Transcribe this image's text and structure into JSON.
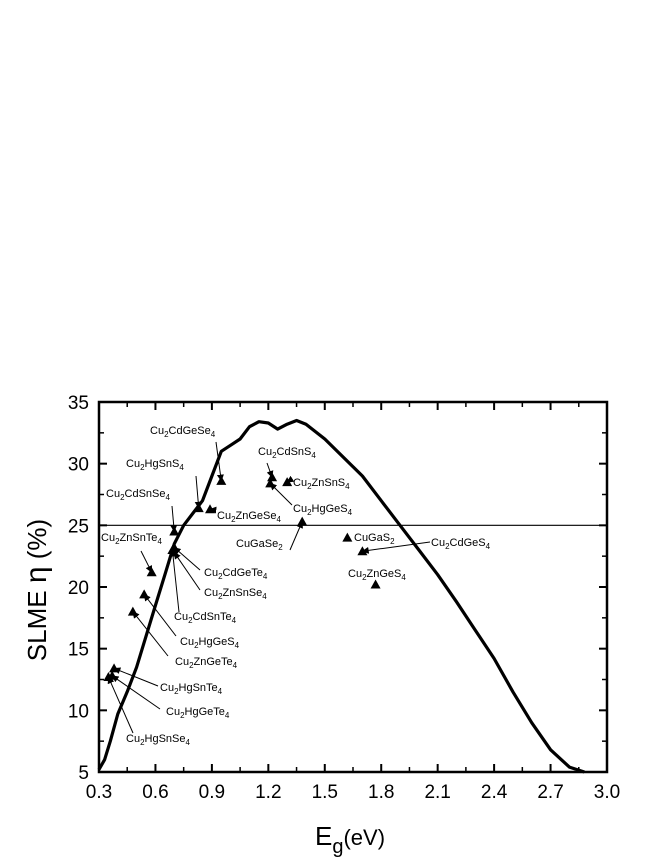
{
  "chart_data": {
    "type": "scatter",
    "xlabel": {
      "main": "E",
      "sub": "g",
      "rest": "(eV)"
    },
    "ylabel": {
      "main": "SLME ",
      "greek": "η",
      "rest": " (%)"
    },
    "xlim": [
      0.3,
      3.0
    ],
    "ylim": [
      5,
      35
    ],
    "xticks": [
      0.3,
      0.6,
      0.9,
      1.2,
      1.5,
      1.8,
      2.1,
      2.4,
      2.7,
      3.0
    ],
    "xtick_labels": [
      "0.3",
      "0.6",
      "0.9",
      "1.2",
      "1.5",
      "1.8",
      "2.1",
      "2.4",
      "2.7",
      "3.0"
    ],
    "yticks": [
      5,
      10,
      15,
      20,
      25,
      30,
      35
    ],
    "ytick_labels": [
      "5",
      "10",
      "15",
      "20",
      "25",
      "30",
      "35"
    ],
    "reference_line_y": 25,
    "slme_curve": {
      "x": [
        0.3,
        0.33,
        0.36,
        0.4,
        0.45,
        0.5,
        0.55,
        0.6,
        0.65,
        0.7,
        0.75,
        0.8,
        0.85,
        0.9,
        0.95,
        1.0,
        1.05,
        1.1,
        1.15,
        1.2,
        1.25,
        1.3,
        1.35,
        1.4,
        1.45,
        1.5,
        1.6,
        1.7,
        1.8,
        1.9,
        2.0,
        2.1,
        2.2,
        2.3,
        2.4,
        2.5,
        2.6,
        2.7,
        2.8,
        2.88
      ],
      "y": [
        5.2,
        6.0,
        7.5,
        9.7,
        11.5,
        13.5,
        16.0,
        18.5,
        21.0,
        23.5,
        25.0,
        26.0,
        27.0,
        29.0,
        31.0,
        31.5,
        32.0,
        33.0,
        33.4,
        33.3,
        32.8,
        33.2,
        33.5,
        33.2,
        32.6,
        32.0,
        30.5,
        29.0,
        27.0,
        25.0,
        23.0,
        21.0,
        18.8,
        16.5,
        14.2,
        11.5,
        9.0,
        6.8,
        5.4,
        4.9
      ]
    },
    "materials": [
      {
        "name": "Cu",
        "sub": "2",
        "tail": "CdGeSe",
        "sub2": "4",
        "x": 0.95,
        "y": 28.6
      },
      {
        "name": "Cu",
        "sub": "2",
        "tail": "HgSnS",
        "sub2": "4",
        "x": 0.83,
        "y": 26.4
      },
      {
        "name": "Cu",
        "sub": "2",
        "tail": "CdSnSe",
        "sub2": "4",
        "x": 0.7,
        "y": 24.5
      },
      {
        "name": "Cu",
        "sub": "2",
        "tail": "ZnSnTe",
        "sub2": "4",
        "x": 0.58,
        "y": 21.2
      },
      {
        "name": "Cu",
        "sub": "2",
        "tail": "ZnGeSe",
        "sub2": "4",
        "x": 0.89,
        "y": 26.3
      },
      {
        "name": "Cu",
        "sub": "2",
        "tail": "CdGeTe",
        "sub2": "4",
        "x": 0.7,
        "y": 23.2
      },
      {
        "name": "Cu",
        "sub": "2",
        "tail": "ZnSnSe",
        "sub2": "4",
        "x": 0.7,
        "y": 22.8
      },
      {
        "name": "Cu",
        "sub": "2",
        "tail": "CdSnTe",
        "sub2": "4",
        "x": 0.69,
        "y": 23.0
      },
      {
        "name": "Cu",
        "sub": "2",
        "tail": "HgGeS",
        "sub2": "4",
        "x": 0.54,
        "y": 19.4
      },
      {
        "name": "Cu",
        "sub": "2",
        "tail": "ZnGeTe",
        "sub2": "4",
        "x": 0.48,
        "y": 18.0
      },
      {
        "name": "Cu",
        "sub": "2",
        "tail": "HgSnTe",
        "sub2": "4",
        "x": 0.38,
        "y": 13.4
      },
      {
        "name": "Cu",
        "sub": "2",
        "tail": "HgGeTe",
        "sub2": "4",
        "x": 0.37,
        "y": 12.8
      },
      {
        "name": "Cu",
        "sub": "2",
        "tail": "HgSnSe",
        "sub2": "4",
        "x": 0.35,
        "y": 12.7
      },
      {
        "name": "Cu",
        "sub": "2",
        "tail": "CdSnS",
        "sub2": "4",
        "x": 1.22,
        "y": 28.9
      },
      {
        "name": "Cu",
        "sub": "2",
        "tail": "ZnSnS",
        "sub2": "4",
        "x": 1.3,
        "y": 28.5
      },
      {
        "name": "Cu",
        "sub": "2",
        "tail": "HgGeS",
        "sub2": "4",
        "x": 1.21,
        "y": 28.4
      },
      {
        "name": "CuGaSe",
        "sub": "2",
        "tail": "",
        "sub2": "",
        "x": 1.38,
        "y": 25.3
      },
      {
        "name": "CuGaS",
        "sub": "2",
        "tail": "",
        "sub2": "",
        "x": 1.62,
        "y": 24.0
      },
      {
        "name": "Cu",
        "sub": "2",
        "tail": "CdGeS",
        "sub2": "4",
        "x": 1.7,
        "y": 22.9
      },
      {
        "name": "Cu",
        "sub": "2",
        "tail": "ZnGeS",
        "sub2": "4",
        "x": 1.77,
        "y": 20.2
      }
    ]
  }
}
